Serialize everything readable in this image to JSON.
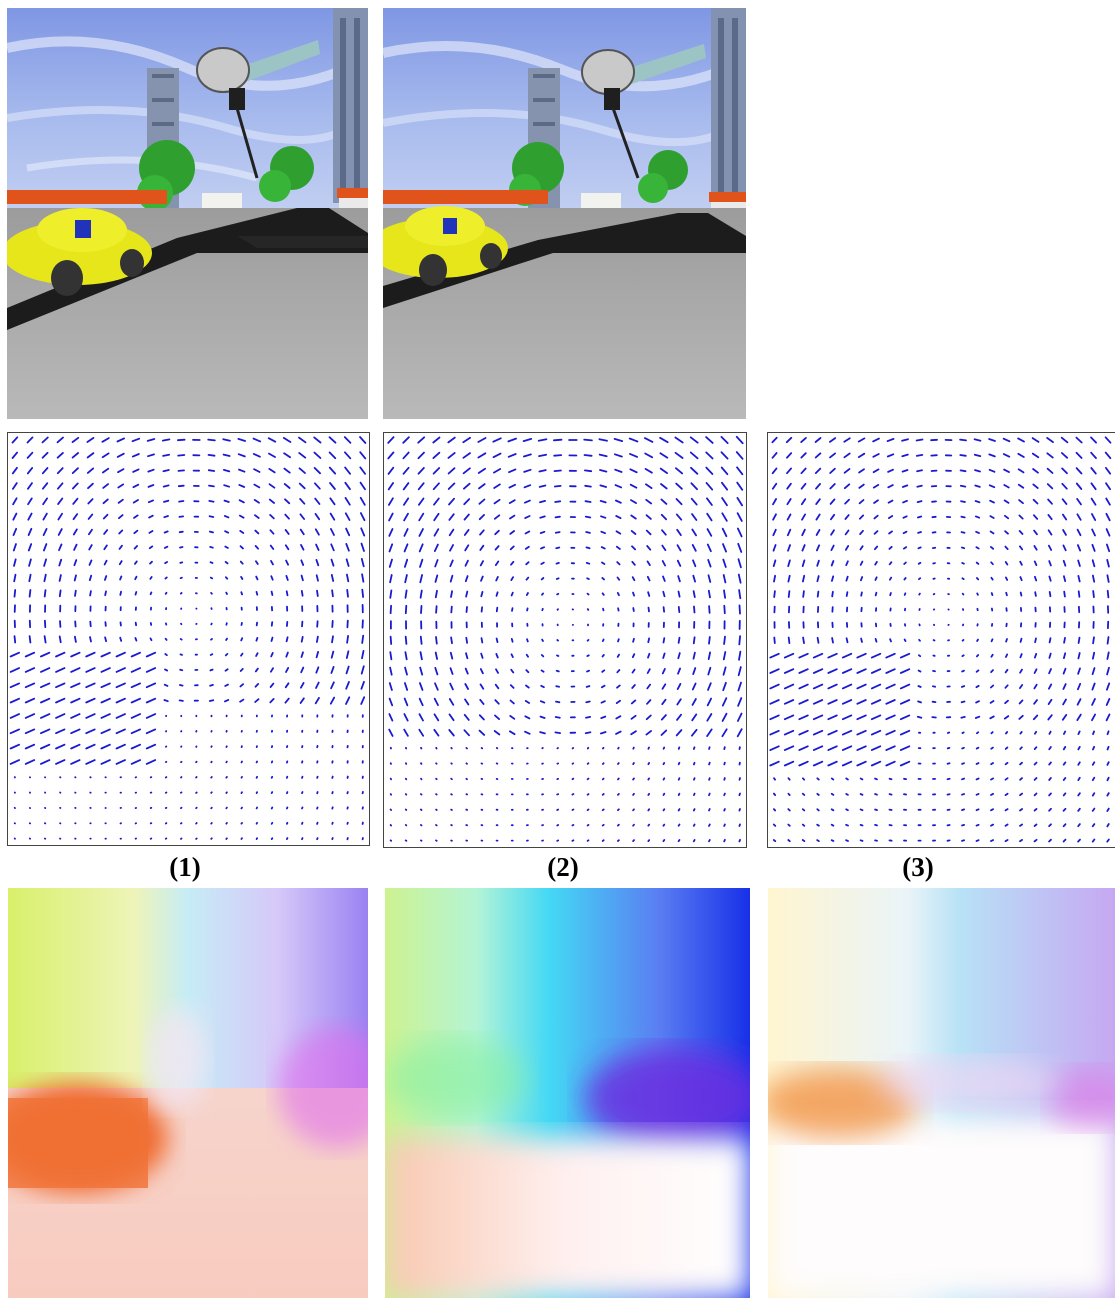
{
  "figure": {
    "captions": [
      "(1)",
      "(2)",
      "(3)"
    ]
  },
  "colors": {
    "arrow": "#1a1ad0",
    "sky": "#8fa6e8",
    "road": "#1c1c1c",
    "ground": "#a9a9a9",
    "car": "#e8e81a",
    "roof": "#e0541c",
    "tree": "#2ea82e",
    "tower": "#7f8ea8"
  },
  "panels": {
    "scenes": [
      "scene-frame-1",
      "scene-frame-2"
    ],
    "quivers": [
      "quiver-plot-1",
      "quiver-plot-2",
      "quiver-plot-3"
    ],
    "flows": [
      "flow-color-map-1",
      "flow-color-map-2",
      "flow-color-map-3"
    ]
  }
}
